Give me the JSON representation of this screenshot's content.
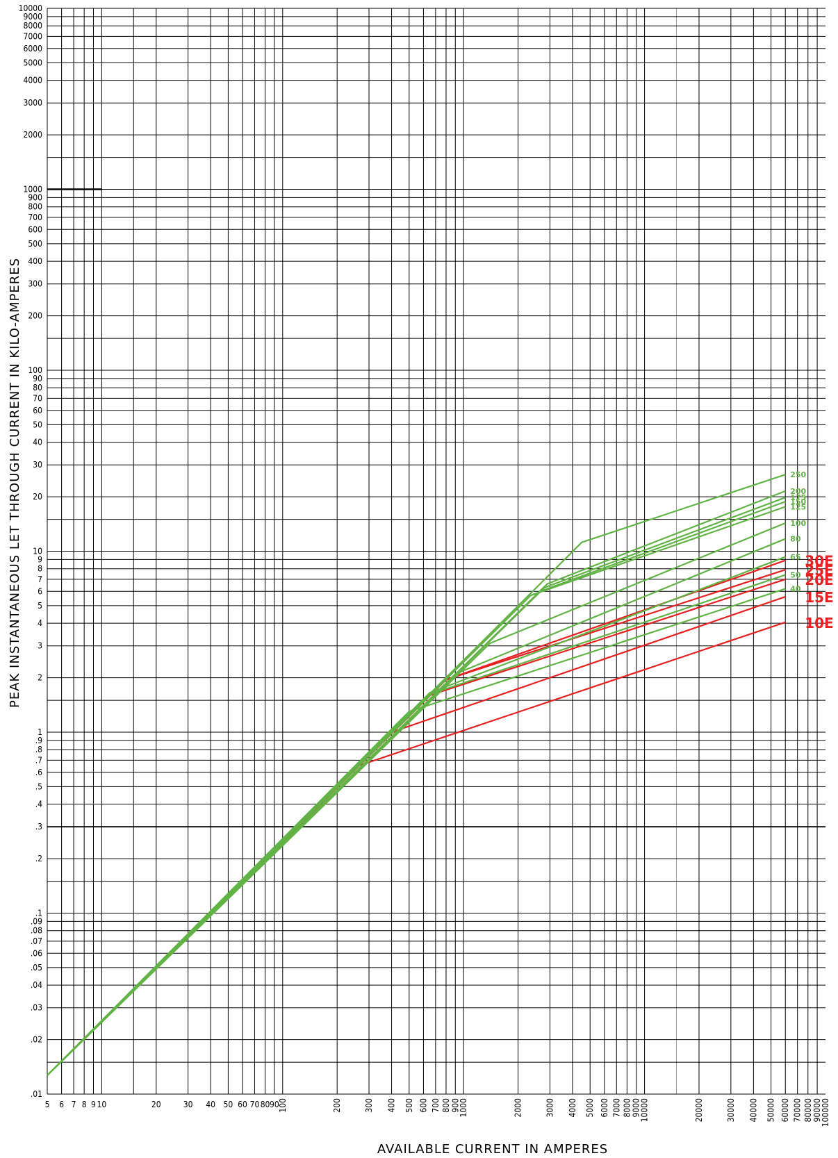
{
  "chart_data": {
    "type": "line",
    "xscale": "log",
    "yscale": "log",
    "xlabel": "AVAILABLE CURRENT IN AMPERES",
    "ylabel": "PEAK INSTANTANEOUS LET THROUGH CURRENT IN KILO-AMPERES",
    "xlim": [
      5,
      100000
    ],
    "ylim": [
      0.01,
      10000
    ],
    "grid": true,
    "x_tick_labels": [
      {
        "value": 5,
        "label": "5"
      },
      {
        "value": 6,
        "label": "6"
      },
      {
        "value": 7,
        "label": "7"
      },
      {
        "value": 8,
        "label": "8"
      },
      {
        "value": 9,
        "label": "9"
      },
      {
        "value": 10,
        "label": "10"
      },
      {
        "value": 20,
        "label": "20"
      },
      {
        "value": 30,
        "label": "30"
      },
      {
        "value": 40,
        "label": "40"
      },
      {
        "value": 50,
        "label": "50"
      },
      {
        "value": 60,
        "label": "60"
      },
      {
        "value": 70,
        "label": "70"
      },
      {
        "value": 80,
        "label": "80"
      },
      {
        "value": 90,
        "label": "90"
      },
      {
        "value": 100,
        "label": "100"
      },
      {
        "value": 200,
        "label": "200"
      },
      {
        "value": 300,
        "label": "300"
      },
      {
        "value": 400,
        "label": "400"
      },
      {
        "value": 500,
        "label": "500"
      },
      {
        "value": 600,
        "label": "600"
      },
      {
        "value": 700,
        "label": "700"
      },
      {
        "value": 800,
        "label": "800"
      },
      {
        "value": 900,
        "label": "900"
      },
      {
        "value": 1000,
        "label": "1000"
      },
      {
        "value": 2000,
        "label": "2000"
      },
      {
        "value": 3000,
        "label": "3000"
      },
      {
        "value": 4000,
        "label": "4000"
      },
      {
        "value": 5000,
        "label": "5000"
      },
      {
        "value": 6000,
        "label": "6000"
      },
      {
        "value": 7000,
        "label": "7000"
      },
      {
        "value": 8000,
        "label": "8000"
      },
      {
        "value": 9000,
        "label": "9000"
      },
      {
        "value": 10000,
        "label": "10000"
      },
      {
        "value": 20000,
        "label": "20000"
      },
      {
        "value": 30000,
        "label": "30000"
      },
      {
        "value": 40000,
        "label": "40000"
      },
      {
        "value": 50000,
        "label": "50000"
      },
      {
        "value": 60000,
        "label": "60000"
      },
      {
        "value": 70000,
        "label": "70000"
      },
      {
        "value": 80000,
        "label": "80000"
      },
      {
        "value": 90000,
        "label": "90000"
      },
      {
        "value": 100000,
        "label": "100000"
      }
    ],
    "y_tick_labels": [
      {
        "value": 0.01,
        "label": ".01"
      },
      {
        "value": 0.02,
        "label": ".02"
      },
      {
        "value": 0.03,
        "label": ".03"
      },
      {
        "value": 0.04,
        "label": ".04"
      },
      {
        "value": 0.05,
        "label": ".05"
      },
      {
        "value": 0.06,
        "label": ".06"
      },
      {
        "value": 0.07,
        "label": ".07"
      },
      {
        "value": 0.08,
        "label": ".08"
      },
      {
        "value": 0.09,
        "label": ".09"
      },
      {
        "value": 0.1,
        "label": ".1"
      },
      {
        "value": 0.2,
        "label": ".2"
      },
      {
        "value": 0.3,
        "label": ".3"
      },
      {
        "value": 0.4,
        "label": ".4"
      },
      {
        "value": 0.5,
        "label": ".5"
      },
      {
        "value": 0.6,
        "label": ".6"
      },
      {
        "value": 0.7,
        "label": ".7"
      },
      {
        "value": 0.8,
        "label": ".8"
      },
      {
        "value": 0.9,
        "label": ".9"
      },
      {
        "value": 1,
        "label": "1"
      },
      {
        "value": 2,
        "label": "2"
      },
      {
        "value": 3,
        "label": "3"
      },
      {
        "value": 4,
        "label": "4"
      },
      {
        "value": 5,
        "label": "5"
      },
      {
        "value": 6,
        "label": "6"
      },
      {
        "value": 7,
        "label": "7"
      },
      {
        "value": 8,
        "label": "8"
      },
      {
        "value": 9,
        "label": "9"
      },
      {
        "value": 10,
        "label": "10"
      },
      {
        "value": 20,
        "label": "20"
      },
      {
        "value": 30,
        "label": "30"
      },
      {
        "value": 40,
        "label": "40"
      },
      {
        "value": 50,
        "label": "50"
      },
      {
        "value": 60,
        "label": "60"
      },
      {
        "value": 70,
        "label": "70"
      },
      {
        "value": 80,
        "label": "80"
      },
      {
        "value": 90,
        "label": "90"
      },
      {
        "value": 100,
        "label": "100"
      },
      {
        "value": 200,
        "label": "200"
      },
      {
        "value": 300,
        "label": "300"
      },
      {
        "value": 400,
        "label": "400"
      },
      {
        "value": 500,
        "label": "500"
      },
      {
        "value": 600,
        "label": "600"
      },
      {
        "value": 700,
        "label": "700"
      },
      {
        "value": 800,
        "label": "800"
      },
      {
        "value": 900,
        "label": "900"
      },
      {
        "value": 1000,
        "label": "1000"
      },
      {
        "value": 2000,
        "label": "2000"
      },
      {
        "value": 3000,
        "label": "3000"
      },
      {
        "value": 4000,
        "label": "4000"
      },
      {
        "value": 5000,
        "label": "5000"
      },
      {
        "value": 6000,
        "label": "6000"
      },
      {
        "value": 7000,
        "label": "7000"
      },
      {
        "value": 8000,
        "label": "8000"
      },
      {
        "value": 9000,
        "label": "9000"
      },
      {
        "value": 10000,
        "label": "10000"
      }
    ],
    "colors": {
      "green": "#62b346",
      "red": "#e52121",
      "grid": "#000000"
    },
    "series": [
      {
        "name": "250",
        "color": "green",
        "points": [
          [
            5,
            0.0127
          ],
          [
            4500,
            11.2
          ],
          [
            60000,
            26.5
          ]
        ]
      },
      {
        "name": "200",
        "color": "green",
        "points": [
          [
            5,
            0.0127
          ],
          [
            2900,
            6.6
          ],
          [
            60000,
            21.5
          ]
        ]
      },
      {
        "name": "175",
        "color": "green",
        "points": [
          [
            5,
            0.0127
          ],
          [
            2800,
            6.3
          ],
          [
            60000,
            19.8
          ]
        ]
      },
      {
        "name": "150",
        "color": "green",
        "points": [
          [
            5,
            0.0127
          ],
          [
            2650,
            6.0
          ],
          [
            60000,
            18.8
          ]
        ]
      },
      {
        "name": "125",
        "color": "green",
        "points": [
          [
            5,
            0.0127
          ],
          [
            2350,
            5.7
          ],
          [
            60000,
            17.6
          ]
        ]
      },
      {
        "name": "100",
        "color": "green",
        "points": [
          [
            5,
            0.0127
          ],
          [
            1400,
            3.1
          ],
          [
            60000,
            14.3
          ]
        ]
      },
      {
        "name": "80",
        "color": "green",
        "points": [
          [
            5,
            0.0127
          ],
          [
            900,
            2.1
          ],
          [
            60000,
            11.7
          ]
        ]
      },
      {
        "name": "65",
        "color": "green",
        "points": [
          [
            5,
            0.0127
          ],
          [
            650,
            1.65
          ],
          [
            60000,
            9.3
          ]
        ]
      },
      {
        "name": "50",
        "color": "green",
        "points": [
          [
            5,
            0.0127
          ],
          [
            650,
            1.62
          ],
          [
            60000,
            7.4
          ]
        ]
      },
      {
        "name": "40",
        "color": "green",
        "points": [
          [
            5,
            0.0127
          ],
          [
            500,
            1.3
          ],
          [
            60000,
            6.2
          ]
        ]
      },
      {
        "name": "30E",
        "color": "red",
        "points": [
          [
            5,
            0.0127
          ],
          [
            800,
            1.95
          ],
          [
            60000,
            8.9
          ]
        ]
      },
      {
        "name": "25E",
        "color": "red",
        "points": [
          [
            5,
            0.0127
          ],
          [
            800,
            1.95
          ],
          [
            60000,
            7.9
          ]
        ]
      },
      {
        "name": "20E",
        "color": "red",
        "points": [
          [
            5,
            0.0127
          ],
          [
            650,
            1.6
          ],
          [
            60000,
            7.0
          ]
        ]
      },
      {
        "name": "15E",
        "color": "red",
        "points": [
          [
            5,
            0.0127
          ],
          [
            400,
            1.0
          ],
          [
            60000,
            5.6
          ]
        ]
      },
      {
        "name": "10E",
        "color": "red",
        "points": [
          [
            5,
            0.0127
          ],
          [
            260,
            0.65
          ],
          [
            60000,
            4.05
          ]
        ]
      }
    ]
  }
}
